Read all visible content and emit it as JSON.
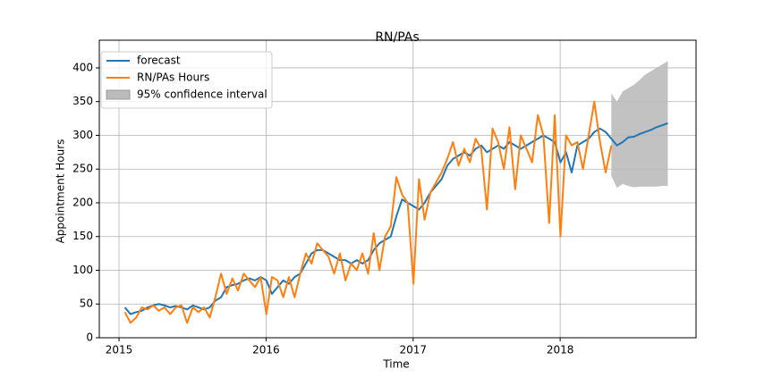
{
  "chart_data": {
    "type": "line",
    "title": "RN/PAs",
    "xlabel": "Time",
    "ylabel": "Appointment Hours",
    "xlim": [
      2014.866,
      2018.924
    ],
    "xticks": [
      2015,
      2016,
      2017,
      2018
    ],
    "ylim": [
      0,
      441
    ],
    "yticks": [
      0,
      50,
      100,
      150,
      200,
      250,
      300,
      350,
      400
    ],
    "grid": true,
    "legend": "upper left",
    "x": [
      2015.04,
      2015.078,
      2015.117,
      2015.155,
      2015.194,
      2015.232,
      2015.271,
      2015.309,
      2015.348,
      2015.386,
      2015.425,
      2015.463,
      2015.502,
      2015.54,
      2015.578,
      2015.617,
      2015.655,
      2015.694,
      2015.732,
      2015.771,
      2015.809,
      2015.848,
      2015.886,
      2015.925,
      2015.963,
      2016.002,
      2016.04,
      2016.078,
      2016.117,
      2016.155,
      2016.194,
      2016.232,
      2016.271,
      2016.309,
      2016.348,
      2016.386,
      2016.425,
      2016.463,
      2016.502,
      2016.54,
      2016.578,
      2016.617,
      2016.655,
      2016.694,
      2016.732,
      2016.771,
      2016.809,
      2016.848,
      2016.886,
      2016.925,
      2016.963,
      2017.002,
      2017.04,
      2017.078,
      2017.117,
      2017.155,
      2017.194,
      2017.232,
      2017.271,
      2017.309,
      2017.348,
      2017.386,
      2017.425,
      2017.463,
      2017.502,
      2017.54,
      2017.578,
      2017.617,
      2017.655,
      2017.694,
      2017.732,
      2017.771,
      2017.809,
      2017.848,
      2017.886,
      2017.925,
      2017.963,
      2018.002,
      2018.04,
      2018.078,
      2018.117,
      2018.155,
      2018.194,
      2018.232,
      2018.271,
      2018.309,
      2018.348,
      2018.386,
      2018.425,
      2018.463,
      2018.502,
      2018.54,
      2018.578,
      2018.617,
      2018.655,
      2018.694,
      2018.732
    ],
    "series": [
      {
        "name": "forecast",
        "color": "#1f77b4",
        "values": [
          45,
          35,
          38,
          40,
          45,
          48,
          50,
          48,
          45,
          47,
          45,
          42,
          48,
          45,
          42,
          45,
          55,
          60,
          75,
          78,
          80,
          85,
          88,
          85,
          90,
          85,
          65,
          75,
          85,
          80,
          90,
          95,
          110,
          125,
          130,
          130,
          125,
          120,
          115,
          115,
          110,
          115,
          110,
          115,
          130,
          140,
          145,
          150,
          180,
          205,
          200,
          195,
          190,
          200,
          215,
          225,
          235,
          255,
          265,
          270,
          275,
          270,
          280,
          285,
          275,
          280,
          285,
          280,
          290,
          285,
          280,
          285,
          290,
          295,
          300,
          295,
          290,
          260,
          275,
          245,
          285,
          290,
          295,
          305,
          310,
          305,
          295,
          285,
          290,
          297,
          298,
          302,
          305,
          308,
          312,
          315,
          318
        ]
      },
      {
        "name": "RN/PAs Hours",
        "color": "#ff7f0e",
        "values": [
          38,
          22,
          30,
          45,
          42,
          48,
          40,
          45,
          35,
          45,
          48,
          22,
          45,
          38,
          45,
          30,
          60,
          95,
          65,
          88,
          70,
          95,
          85,
          75,
          90,
          35,
          90,
          85,
          60,
          90,
          60,
          95,
          125,
          110,
          140,
          130,
          120,
          95,
          125,
          85,
          110,
          100,
          125,
          95,
          155,
          100,
          150,
          165,
          238,
          212,
          200,
          80,
          235,
          175,
          215,
          230,
          245,
          265,
          290,
          255,
          280,
          260,
          295,
          280,
          190,
          310,
          290,
          250,
          312,
          220,
          300,
          280,
          260,
          330,
          300,
          170,
          330,
          150,
          300,
          285,
          290,
          250,
          300,
          350,
          290,
          245,
          285,
          null,
          null,
          null,
          null,
          null,
          null,
          null,
          null,
          null,
          null
        ]
      }
    ],
    "band": {
      "name": "95% confidence interval",
      "color": "#bbbbbb",
      "x": [
        2018.348,
        2018.386,
        2018.425,
        2018.463,
        2018.502,
        2018.54,
        2018.578,
        2018.617,
        2018.655,
        2018.694,
        2018.732
      ],
      "lower": [
        240,
        222,
        228,
        225,
        223,
        224,
        224,
        224,
        224,
        225,
        225
      ],
      "upper": [
        362,
        350,
        365,
        370,
        375,
        382,
        390,
        395,
        400,
        405,
        410
      ]
    }
  }
}
